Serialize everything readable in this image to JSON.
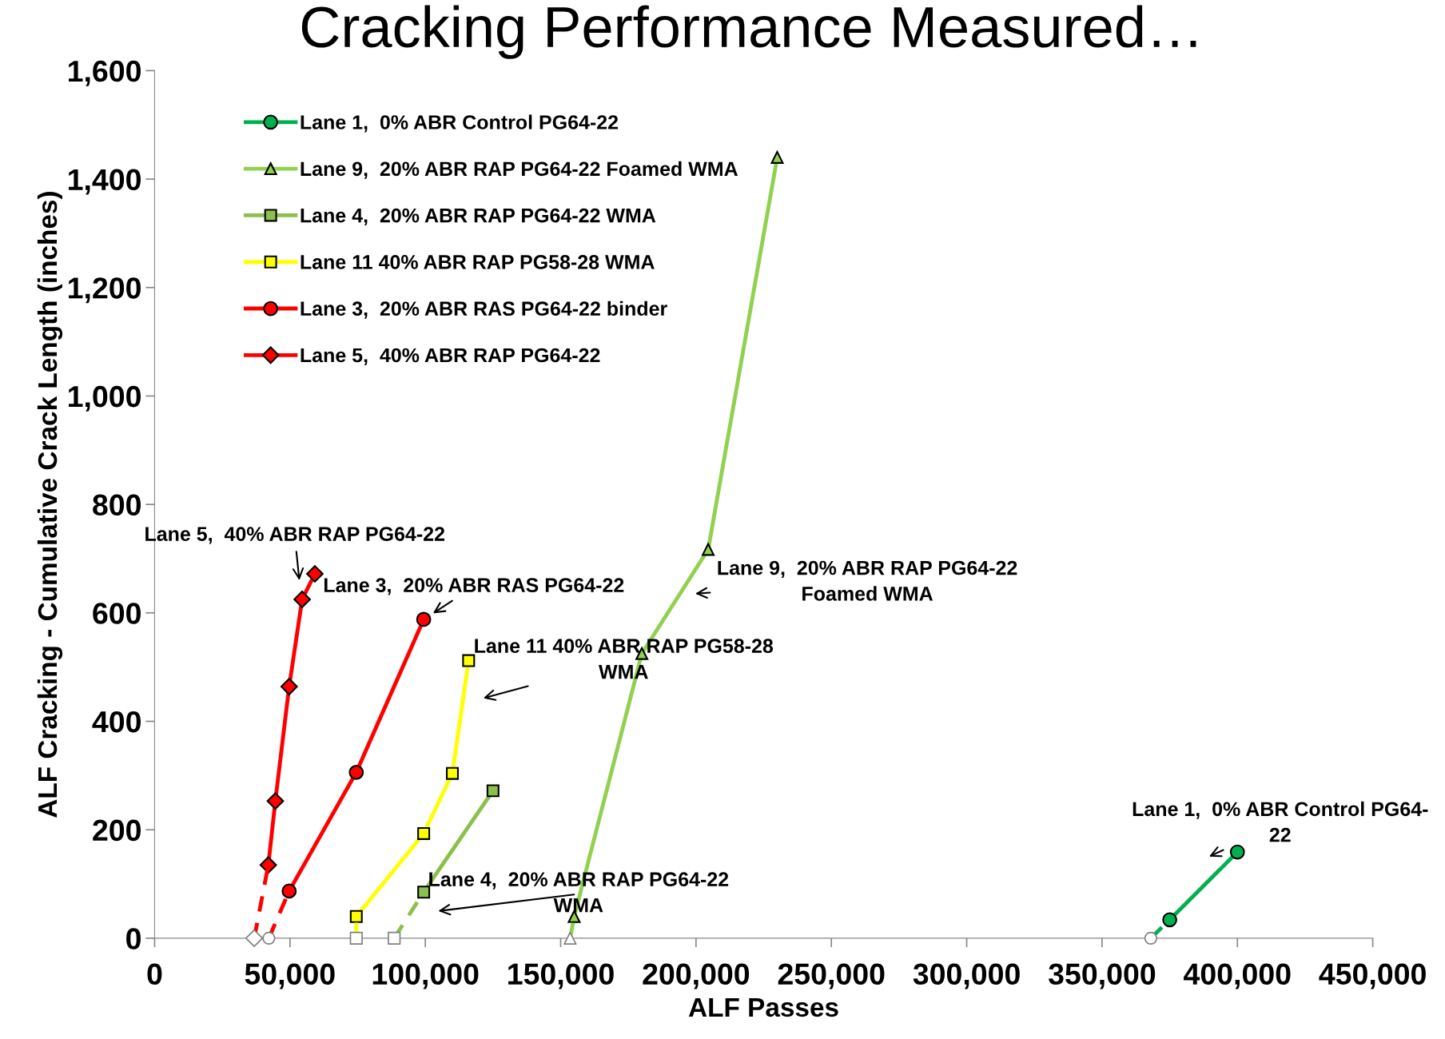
{
  "chart_data": {
    "type": "line",
    "title": "Cracking Performance Measured…",
    "xlabel": "ALF Passes",
    "ylabel": "ALF Cracking - Cumulative Crack Length (inches)",
    "xlim": [
      0,
      450000
    ],
    "xticks": [
      {
        "value": 0,
        "label": "0"
      },
      {
        "value": 50000,
        "label": "50,000"
      },
      {
        "value": 100000,
        "label": "100,000"
      },
      {
        "value": 150000,
        "label": "150,000"
      },
      {
        "value": 200000,
        "label": "200,000"
      },
      {
        "value": 250000,
        "label": "250,000"
      },
      {
        "value": 300000,
        "label": "300,000"
      },
      {
        "value": 350000,
        "label": "350,000"
      },
      {
        "value": 400000,
        "label": "400,000"
      },
      {
        "value": 450000,
        "label": "450,000"
      }
    ],
    "ylim": [
      0,
      1600
    ],
    "yticks": [
      {
        "value": 0,
        "label": "0"
      },
      {
        "value": 200,
        "label": "200"
      },
      {
        "value": 400,
        "label": "400"
      },
      {
        "value": 600,
        "label": "600"
      },
      {
        "value": 800,
        "label": "800"
      },
      {
        "value": 1000,
        "label": "1,000"
      },
      {
        "value": 1200,
        "label": "1,200"
      },
      {
        "value": 1400,
        "label": "1,400"
      },
      {
        "value": 1600,
        "label": "1,600"
      }
    ],
    "grid": false,
    "legend": "top left",
    "line_style": "solid",
    "series": [
      {
        "name": "Lane 1,  0% ABR Control PG64-22",
        "color": "#00b050",
        "marker": "circle",
        "x": [
          375000,
          400000
        ],
        "values": [
          34,
          159
        ]
      },
      {
        "name": "Lane 9,  20% ABR RAP PG64-22 Foamed WMA",
        "color": "#92d050",
        "marker": "triangle",
        "x": [
          155000,
          180000,
          204500,
          230000
        ],
        "values": [
          40,
          525,
          717,
          1440
        ]
      },
      {
        "name": "Lane 4,  20% ABR RAP PG64-22 WMA",
        "color": "#8cc04c",
        "marker": "square",
        "x": [
          99400,
          125000
        ],
        "values": [
          85,
          272
        ]
      },
      {
        "name": "Lane 11 40% ABR RAP PG58-28 WMA",
        "color": "#ffff00",
        "marker": "square",
        "x": [
          74500,
          99400,
          110000,
          116000
        ],
        "values": [
          40,
          193,
          304,
          512
        ]
      },
      {
        "name": "Lane 3,  20% ABR RAS PG64-22 binder",
        "color": "#ff0000",
        "marker": "circle",
        "x": [
          49700,
          74500,
          99400
        ],
        "values": [
          87,
          306,
          588
        ]
      },
      {
        "name": "Lane 5,  40% ABR RAP PG64-22",
        "color": "#ff0000",
        "marker": "diamond",
        "x": [
          42000,
          44600,
          49700,
          54500,
          59200
        ],
        "values": [
          135,
          253,
          464,
          625,
          672
        ]
      },
      {
        "color": "#00b050",
        "line_style": "dashed",
        "marker": "none",
        "x": [
          368000,
          375000
        ],
        "values": [
          0,
          34
        ]
      },
      {
        "color": "#92d050",
        "line_style": "dashed",
        "marker": "none",
        "x": [
          153500,
          155000
        ],
        "values": [
          0,
          40
        ]
      },
      {
        "color": "#8cc04c",
        "line_style": "dashed",
        "marker": "none",
        "x": [
          88500,
          99400
        ],
        "values": [
          0,
          85
        ]
      },
      {
        "color": "#ffff00",
        "line_style": "dashed",
        "marker": "none",
        "x": [
          74500,
          74500
        ],
        "values": [
          0,
          40
        ]
      },
      {
        "color": "#ff0000",
        "line_style": "dashed",
        "marker": "none",
        "x": [
          42200,
          49700
        ],
        "values": [
          0,
          87
        ]
      },
      {
        "color": "#ff0000",
        "line_style": "dashed",
        "marker": "none",
        "x": [
          36800,
          42000
        ],
        "values": [
          0,
          135
        ]
      },
      {
        "type": "scatter",
        "color": "#808080",
        "marker": "circle",
        "x": [
          368000,
          42200
        ],
        "values": [
          0,
          0
        ]
      },
      {
        "type": "scatter",
        "color": "#808080",
        "marker": "triangle",
        "x": [
          153500
        ],
        "values": [
          0
        ]
      },
      {
        "type": "scatter",
        "color": "#808080",
        "marker": "square",
        "x": [
          88500,
          74500
        ],
        "values": [
          0,
          0
        ]
      },
      {
        "type": "scatter",
        "color": "#808080",
        "marker": "diamond",
        "x": [
          36800
        ],
        "values": [
          0
        ]
      }
    ],
    "annotations": [
      "Lane 5,  40% ABR RAP PG64-22",
      {
        "text": "Lane 3,  20% ABR RAS PG64-22",
        "x": 99400,
        "y": 588
      },
      "Lane 11 40% ABR RAP PG58-28\nWMA",
      "Lane 9,  20% ABR RAP PG64-22\nFoamed WMA",
      "Lane 4,  20% ABR RAP PG64-22\nWMA",
      "Lane 1,  0% ABR Control PG64-\n22"
    ]
  }
}
